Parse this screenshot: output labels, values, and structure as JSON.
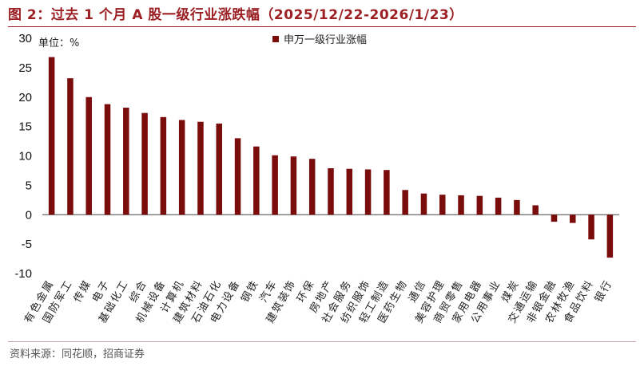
{
  "title": "图 2：过去 1 个月 A 股一级行业涨跌幅（2025/12/22-2026/1/23）",
  "unit_label": "单位：%",
  "source": "资料来源：同花顺，招商证券",
  "colors": {
    "bar": "#7b0c0c",
    "title": "#9b1f23",
    "axis": "#444444"
  },
  "chart_data": {
    "type": "bar",
    "title": "过去 1 个月 A 股一级行业涨跌幅（2025/12/22-2026/1/23）",
    "ylabel": "%",
    "ylim": [
      -10,
      30
    ],
    "yticks": [
      -10,
      -5,
      0,
      5,
      10,
      15,
      20,
      25,
      30
    ],
    "legend": "top-center",
    "categories": [
      "有色金属",
      "国防军工",
      "传媒",
      "电子",
      "基础化工",
      "综合",
      "机械设备",
      "计算机",
      "建筑材料",
      "石油石化",
      "电力设备",
      "钢铁",
      "汽车",
      "建筑装饰",
      "环保",
      "房地产",
      "社会服务",
      "纺织服饰",
      "轻工制造",
      "医药生物",
      "通信",
      "美容护理",
      "商贸零售",
      "家用电器",
      "公用事业",
      "煤炭",
      "交通运输",
      "非银金融",
      "农林牧渔",
      "食品饮料",
      "银行"
    ],
    "series": [
      {
        "name": "申万一级行业涨幅",
        "values": [
          26.8,
          23.2,
          20.0,
          18.8,
          18.2,
          17.3,
          16.6,
          16.1,
          15.8,
          15.5,
          13.0,
          11.6,
          10.1,
          9.9,
          9.5,
          7.9,
          7.8,
          7.7,
          7.6,
          4.2,
          3.6,
          3.4,
          3.3,
          3.2,
          2.9,
          2.5,
          1.6,
          -1.2,
          -1.4,
          -4.2,
          -7.3
        ]
      }
    ]
  }
}
